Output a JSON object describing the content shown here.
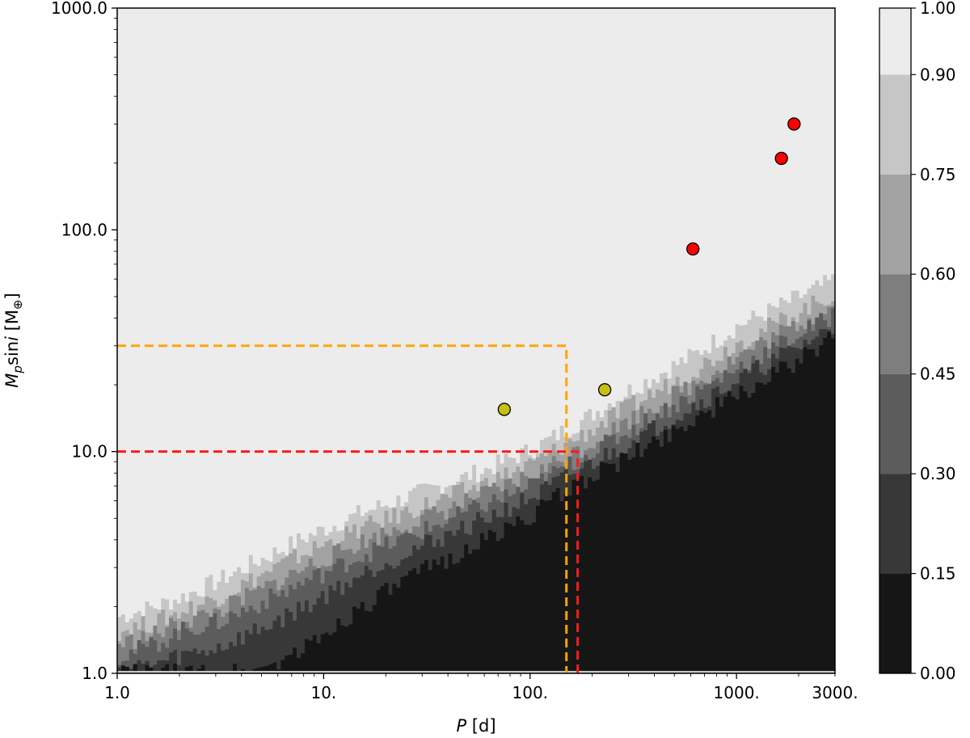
{
  "chart_data": {
    "type": "scatter",
    "title": "",
    "xlabel": "P [d]",
    "ylabel": "M_p sin i [M_⊕]",
    "xscale": "log",
    "yscale": "log",
    "xlim": [
      1.0,
      3000.0
    ],
    "ylim": [
      1.0,
      1000.0
    ],
    "x_ticks": [
      {
        "value": 1.0,
        "label": "1.0"
      },
      {
        "value": 10.0,
        "label": "10."
      },
      {
        "value": 100.0,
        "label": "100."
      },
      {
        "value": 1000.0,
        "label": "1000."
      },
      {
        "value": 3000.0,
        "label": "3000."
      }
    ],
    "y_ticks": [
      {
        "value": 1.0,
        "label": "1.0"
      },
      {
        "value": 10.0,
        "label": "10.0"
      },
      {
        "value": 100.0,
        "label": "100.0"
      },
      {
        "value": 1000.0,
        "label": "1000.0"
      }
    ],
    "background": {
      "type": "filled-contour",
      "levels": [
        0.0,
        0.15,
        0.3,
        0.45,
        0.6,
        0.75,
        0.9,
        1.0
      ],
      "level_colors": [
        "#161616",
        "#383838",
        "#5c5c5c",
        "#7e7e7e",
        "#a2a2a2",
        "#c6c6c6",
        "#ececec"
      ],
      "boundaries": {
        "p": [
          1,
          1.5,
          2,
          3,
          5,
          8,
          15,
          30,
          60,
          100,
          180,
          300,
          600,
          1000,
          2000,
          3000
        ],
        "level_0.15": [
          1.0,
          1.0,
          1.0,
          1.0,
          1.05,
          1.3,
          2.0,
          2.9,
          4.0,
          5.2,
          7.5,
          9.5,
          14.0,
          18.0,
          26.0,
          33.0
        ],
        "level_0.30": [
          1.05,
          1.1,
          1.2,
          1.3,
          1.6,
          2.0,
          2.8,
          3.8,
          5.0,
          6.2,
          8.5,
          11.0,
          16.0,
          21.0,
          30.0,
          37.0
        ],
        "level_0.45": [
          1.2,
          1.35,
          1.55,
          1.7,
          2.1,
          2.6,
          3.4,
          4.4,
          5.8,
          7.0,
          9.5,
          12.5,
          18.0,
          24.0,
          34.0,
          42.0
        ],
        "level_0.60": [
          1.35,
          1.5,
          1.7,
          1.9,
          2.4,
          3.0,
          3.9,
          5.0,
          6.4,
          7.8,
          10.5,
          14.0,
          20.0,
          27.0,
          38.0,
          46.0
        ],
        "level_0.75": [
          1.55,
          1.7,
          1.9,
          2.2,
          2.8,
          3.5,
          4.5,
          5.7,
          7.2,
          8.8,
          12.0,
          16.0,
          23.0,
          31.0,
          43.0,
          52.0
        ],
        "level_0.90": [
          1.8,
          2.0,
          2.2,
          2.6,
          3.3,
          4.1,
          5.3,
          6.6,
          8.3,
          10.2,
          14.0,
          19.0,
          27.0,
          37.0,
          50.0,
          60.0
        ]
      }
    },
    "colorbar": {
      "range": [
        0.0,
        1.0
      ],
      "tick_values": [
        0.0,
        0.15,
        0.3,
        0.45,
        0.6,
        0.75,
        0.9,
        1.0
      ],
      "tick_labels": [
        "0.00",
        "0.15",
        "0.30",
        "0.45",
        "0.60",
        "0.75",
        "0.90",
        "1.00"
      ]
    },
    "reference_lines": [
      {
        "kind": "box",
        "x_max": 150,
        "y_max": 30,
        "color": "#ffa500",
        "style": "dashed"
      },
      {
        "kind": "box",
        "x_max": 170,
        "y_max": 10,
        "color": "#ff1a1a",
        "style": "dashed"
      }
    ],
    "series": [
      {
        "color": "#c8c010",
        "points": [
          {
            "x": 75,
            "y": 15.5
          },
          {
            "x": 230,
            "y": 19.0
          }
        ]
      },
      {
        "color": "#ff0000",
        "points": [
          {
            "x": 615,
            "y": 82
          },
          {
            "x": 1650,
            "y": 210
          },
          {
            "x": 1900,
            "y": 300
          }
        ]
      }
    ]
  }
}
